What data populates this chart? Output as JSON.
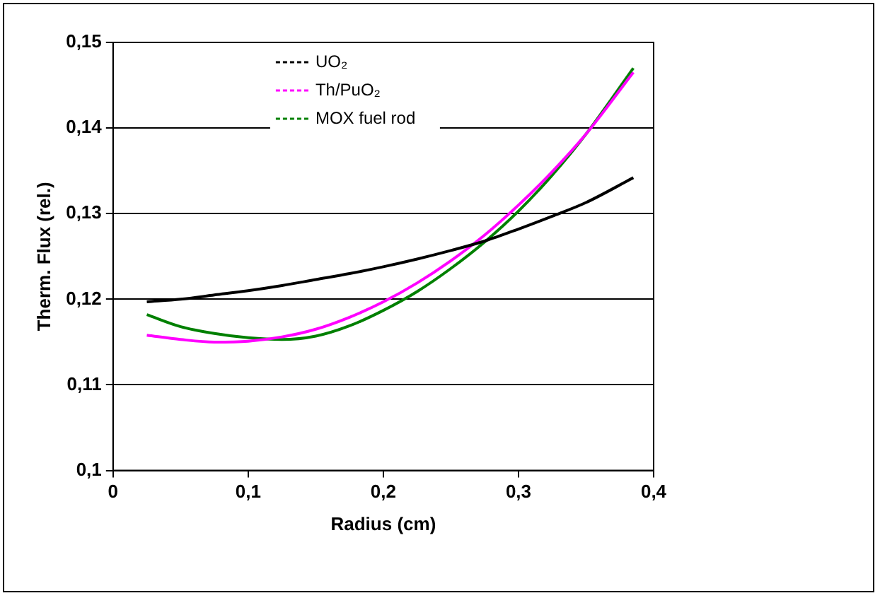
{
  "chart_data": {
    "type": "line",
    "xlabel": "Radius (cm)",
    "ylabel": "Therm. Flux (rel.)",
    "xlim": [
      0,
      0.4
    ],
    "xticks": [
      0,
      {
        "value": 0.1,
        "label": "0,1"
      },
      {
        "value": 0.2,
        "label": "0,2"
      },
      {
        "value": 0.3,
        "label": "0,3"
      },
      {
        "value": 0.4,
        "label": "0,4"
      }
    ],
    "ylim": [
      0.1,
      0.15
    ],
    "yticks": [
      {
        "value": 0.1,
        "label": "0,1"
      },
      {
        "value": 0.11,
        "label": "0,11"
      },
      {
        "value": 0.12,
        "label": "0,12"
      },
      {
        "value": 0.13,
        "label": "0,13"
      },
      {
        "value": 0.14,
        "label": "0,14"
      },
      {
        "value": 0.15,
        "label": "0,15"
      }
    ],
    "grid": "y",
    "legend": "top",
    "marker": "none",
    "line_style": "solid",
    "x": [
      0.025,
      0.05,
      0.075,
      0.1,
      0.125,
      0.15,
      0.175,
      0.2,
      0.225,
      0.25,
      0.275,
      0.3,
      0.325,
      0.35,
      0.385
    ],
    "series": [
      {
        "name": "UO₂",
        "color": "#000000",
        "values": [
          0.1197,
          0.12,
          0.1205,
          0.121,
          0.1216,
          0.1223,
          0.123,
          0.1238,
          0.1247,
          0.1257,
          0.1268,
          0.1282,
          0.1297,
          0.1313,
          0.1342
        ]
      },
      {
        "name": "Th/PuO₂",
        "color": "#ff00ff",
        "values": [
          0.1158,
          0.1153,
          0.115,
          0.1151,
          0.1156,
          0.1165,
          0.1179,
          0.1197,
          0.1219,
          0.1245,
          0.1275,
          0.131,
          0.1349,
          0.1393,
          0.1465
        ]
      },
      {
        "name": "MOX fuel rod",
        "color": "#008000",
        "values": [
          0.1182,
          0.1168,
          0.116,
          0.1155,
          0.1153,
          0.1157,
          0.1169,
          0.1187,
          0.1209,
          0.1236,
          0.1267,
          0.1303,
          0.1345,
          0.1393,
          0.147
        ]
      }
    ]
  }
}
